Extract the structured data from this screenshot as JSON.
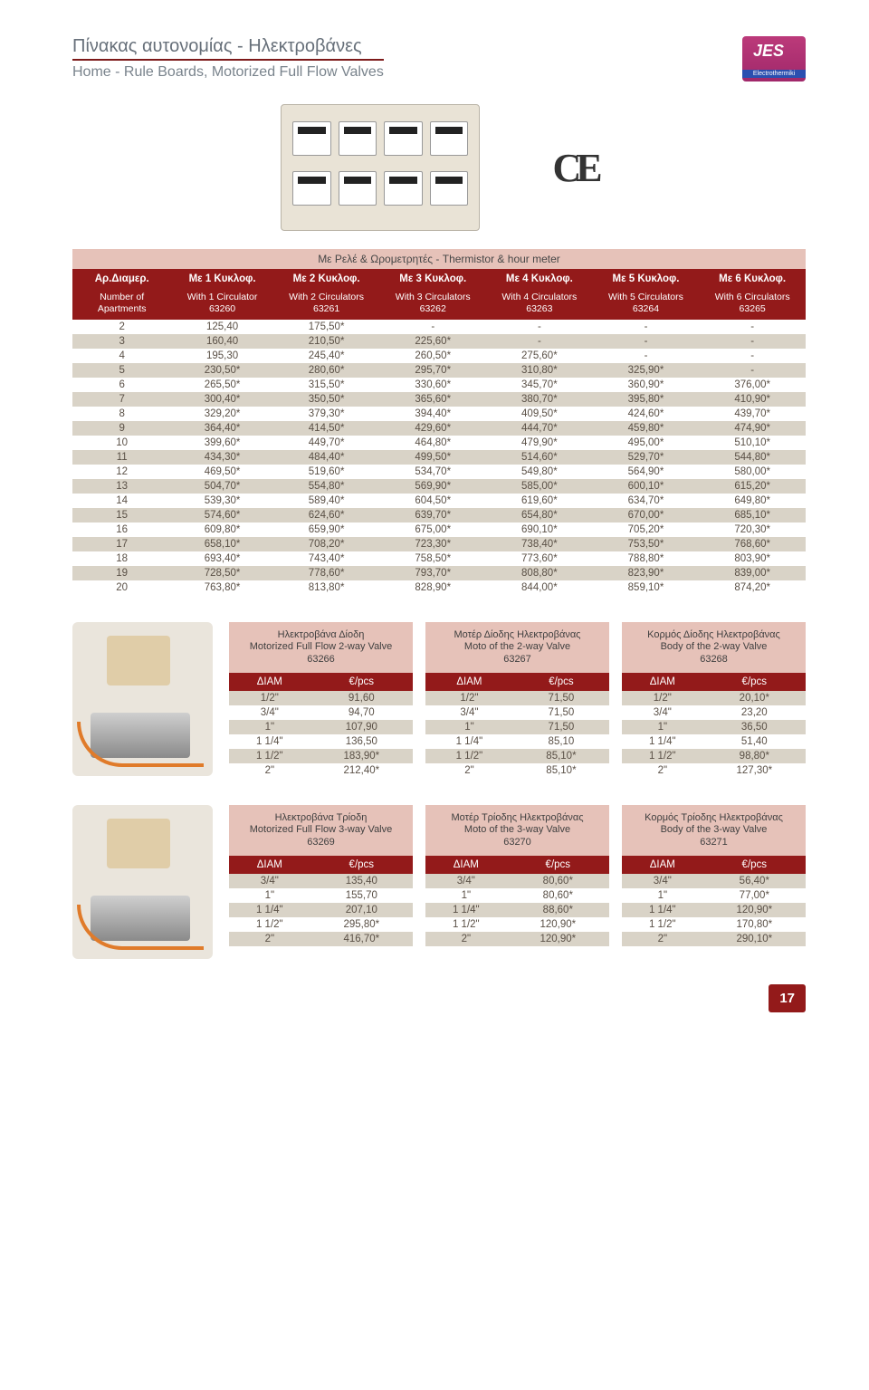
{
  "header": {
    "title_gr": "Πίνακας αυτονομίας - Ηλεκτροβάνες",
    "title_en": "Home - Rule Boards, Motorized Full Flow Valves",
    "logo_text": "JES",
    "logo_sub": "Electrothermiki",
    "ce_mark": "CE"
  },
  "main_table": {
    "banner": "Με Ρελέ & Ωρομετρητές - Thermistor & hour meter",
    "header_row1": [
      "Αρ.Διαμερ.",
      "Με 1 Κυκλοφ.",
      "Με 2 Κυκλοφ.",
      "Με 3 Κυκλοφ.",
      "Με 4 Κυκλοφ.",
      "Με 5 Κυκλοφ.",
      "Με 6 Κυκλοφ."
    ],
    "header_row2": [
      "Number of Apartments",
      "With 1 Circulator 63260",
      "With 2 Circulators 63261",
      "With 3 Circulators 63262",
      "With 4 Circulators 63263",
      "With 5 Circulators 63264",
      "With 6 Circulators 63265"
    ],
    "rows": [
      [
        "2",
        "125,40",
        "175,50*",
        "-",
        "-",
        "-",
        "-"
      ],
      [
        "3",
        "160,40",
        "210,50*",
        "225,60*",
        "-",
        "-",
        "-"
      ],
      [
        "4",
        "195,30",
        "245,40*",
        "260,50*",
        "275,60*",
        "-",
        "-"
      ],
      [
        "5",
        "230,50*",
        "280,60*",
        "295,70*",
        "310,80*",
        "325,90*",
        "-"
      ],
      [
        "6",
        "265,50*",
        "315,50*",
        "330,60*",
        "345,70*",
        "360,90*",
        "376,00*"
      ],
      [
        "7",
        "300,40*",
        "350,50*",
        "365,60*",
        "380,70*",
        "395,80*",
        "410,90*"
      ],
      [
        "8",
        "329,20*",
        "379,30*",
        "394,40*",
        "409,50*",
        "424,60*",
        "439,70*"
      ],
      [
        "9",
        "364,40*",
        "414,50*",
        "429,60*",
        "444,70*",
        "459,80*",
        "474,90*"
      ],
      [
        "10",
        "399,60*",
        "449,70*",
        "464,80*",
        "479,90*",
        "495,00*",
        "510,10*"
      ],
      [
        "11",
        "434,30*",
        "484,40*",
        "499,50*",
        "514,60*",
        "529,70*",
        "544,80*"
      ],
      [
        "12",
        "469,50*",
        "519,60*",
        "534,70*",
        "549,80*",
        "564,90*",
        "580,00*"
      ],
      [
        "13",
        "504,70*",
        "554,80*",
        "569,90*",
        "585,00*",
        "600,10*",
        "615,20*"
      ],
      [
        "14",
        "539,30*",
        "589,40*",
        "604,50*",
        "619,60*",
        "634,70*",
        "649,80*"
      ],
      [
        "15",
        "574,60*",
        "624,60*",
        "639,70*",
        "654,80*",
        "670,00*",
        "685,10*"
      ],
      [
        "16",
        "609,80*",
        "659,90*",
        "675,00*",
        "690,10*",
        "705,20*",
        "720,30*"
      ],
      [
        "17",
        "658,10*",
        "708,20*",
        "723,30*",
        "738,40*",
        "753,50*",
        "768,60*"
      ],
      [
        "18",
        "693,40*",
        "743,40*",
        "758,50*",
        "773,60*",
        "788,80*",
        "803,90*"
      ],
      [
        "19",
        "728,50*",
        "778,60*",
        "793,70*",
        "808,80*",
        "823,90*",
        "839,00*"
      ],
      [
        "20",
        "763,80*",
        "813,80*",
        "828,90*",
        "844,00*",
        "859,10*",
        "874,20*"
      ]
    ],
    "zebra_colors": [
      "#ffffff",
      "#d9d3c7"
    ],
    "header_bg": "#931a1a",
    "banner_bg": "#e6c2b9"
  },
  "product_set_1": {
    "tables": [
      {
        "title": "Ηλεκτροβάνα Δίοδη\nMotorized Full Flow 2-way Valve\n63266",
        "cols": [
          "ΔΙΑΜ",
          "€/pcs"
        ],
        "rows": [
          [
            "1/2\"",
            "91,60"
          ],
          [
            "3/4\"",
            "94,70"
          ],
          [
            "1\"",
            "107,90"
          ],
          [
            "1 1/4\"",
            "136,50"
          ],
          [
            "1 1/2\"",
            "183,90*"
          ],
          [
            "2\"",
            "212,40*"
          ]
        ]
      },
      {
        "title": "Μοτέρ Δίοδης Ηλεκτροβάνας\nMoto of the 2-way Valve\n63267",
        "cols": [
          "ΔΙΑΜ",
          "€/pcs"
        ],
        "rows": [
          [
            "1/2\"",
            "71,50"
          ],
          [
            "3/4\"",
            "71,50"
          ],
          [
            "1\"",
            "71,50"
          ],
          [
            "1 1/4\"",
            "85,10"
          ],
          [
            "1 1/2\"",
            "85,10*"
          ],
          [
            "2\"",
            "85,10*"
          ]
        ]
      },
      {
        "title": "Κορμός Δίοδης Ηλεκτροβάνας\nBody of the 2-way Valve\n63268",
        "cols": [
          "ΔΙΑΜ",
          "€/pcs"
        ],
        "rows": [
          [
            "1/2\"",
            "20,10*"
          ],
          [
            "3/4\"",
            "23,20"
          ],
          [
            "1\"",
            "36,50"
          ],
          [
            "1 1/4\"",
            "51,40"
          ],
          [
            "1 1/2\"",
            "98,80*"
          ],
          [
            "2\"",
            "127,30*"
          ]
        ]
      }
    ]
  },
  "product_set_2": {
    "tables": [
      {
        "title": "Ηλεκτροβάνα Τρίοδη\nMotorized Full Flow 3-way Valve\n63269",
        "cols": [
          "ΔΙΑΜ",
          "€/pcs"
        ],
        "rows": [
          [
            "3/4\"",
            "135,40"
          ],
          [
            "1\"",
            "155,70"
          ],
          [
            "1 1/4\"",
            "207,10"
          ],
          [
            "1 1/2\"",
            "295,80*"
          ],
          [
            "2\"",
            "416,70*"
          ]
        ]
      },
      {
        "title": "Μοτέρ Τρίοδης Ηλεκτροβάνας\nMoto of the 3-way Valve\n63270",
        "cols": [
          "ΔΙΑΜ",
          "€/pcs"
        ],
        "rows": [
          [
            "3/4\"",
            "80,60*"
          ],
          [
            "1\"",
            "80,60*"
          ],
          [
            "1 1/4\"",
            "88,60*"
          ],
          [
            "1 1/2\"",
            "120,90*"
          ],
          [
            "2\"",
            "120,90*"
          ]
        ]
      },
      {
        "title": "Κορμός Τρίοδης Ηλεκτροβάνας\nBody of the 3-way Valve\n63271",
        "cols": [
          "ΔΙΑΜ",
          "€/pcs"
        ],
        "rows": [
          [
            "3/4\"",
            "56,40*"
          ],
          [
            "1\"",
            "77,00*"
          ],
          [
            "1 1/4\"",
            "120,90*"
          ],
          [
            "1 1/2\"",
            "170,80*"
          ],
          [
            "2\"",
            "290,10*"
          ]
        ]
      }
    ]
  },
  "footer": {
    "page": "17"
  }
}
